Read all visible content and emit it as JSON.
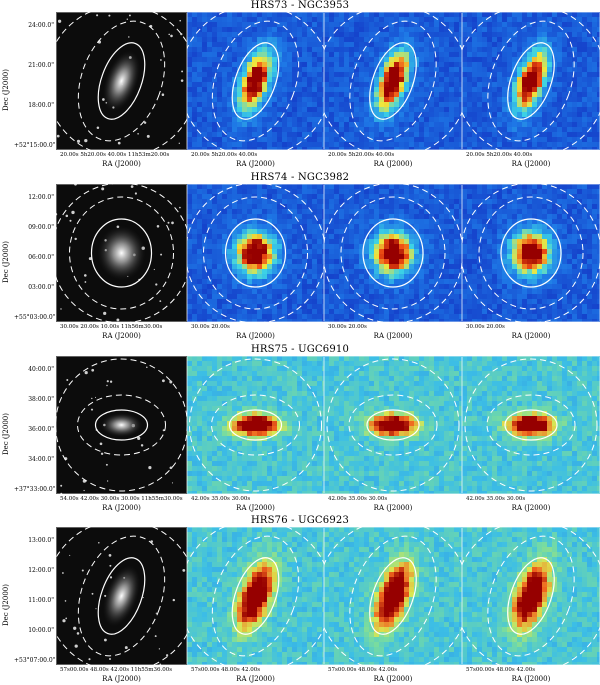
{
  "rows": [
    {
      "title": "HRS73 - NGC3953",
      "dec_label": "Dec (J2000)",
      "ra_label": "RA (J2000)",
      "yticks": [
        "24:00.0\"",
        "21:00.0\"",
        "18:00.0\"",
        "+52°15:00.0\""
      ],
      "xticks_optical": "20.00s   5h20.00s   40.00s  11h53m20.00s",
      "xticks_sub": "20.00s  5h20.00s   40.00s",
      "map_style": "blue-red",
      "shape": "inclined"
    },
    {
      "title": "HRS74 - NGC3982",
      "dec_label": "Dec (J2000)",
      "ra_label": "RA (J2000)",
      "yticks": [
        "12:00.0\"",
        "09:00.0\"",
        "06:00.0\"",
        "03:00.0\"",
        "+55°03:00.0\""
      ],
      "xticks_optical": "30.00s   20.00s   10.00s  11h56m30.00s",
      "xticks_sub": "30.00s    20.00s",
      "map_style": "blue-red",
      "shape": "round"
    },
    {
      "title": "HRS75 - UGC6910",
      "dec_label": "Dec (J2000)",
      "ra_label": "RA (J2000)",
      "yticks": [
        "40:00.0\"",
        "38:00.0\"",
        "36:00.0\"",
        "34:00.0\"",
        "+37°33:00.0\""
      ],
      "xticks_optical": "54.00s   42.00s  30.00s  30.00s  11h55m30.00s",
      "xticks_sub": "42.00s   35.00s  30.00s",
      "map_style": "green-red",
      "shape": "edge-on"
    },
    {
      "title": "HRS76 - UGC6923",
      "dec_label": "Dec (J2000)",
      "ra_label": "RA (J2000)",
      "yticks": [
        "13:00.0\"",
        "12:00.0\"",
        "11:00.0\"",
        "10:00.0\"",
        "+53°07:00.0\""
      ],
      "xticks_optical": "57s00.00s  48.00s  42.00s  11h55m36.00s",
      "xticks_sub": "57s00.00s  48.00s  42.00s",
      "map_style": "green-red",
      "shape": "inclined"
    }
  ]
}
